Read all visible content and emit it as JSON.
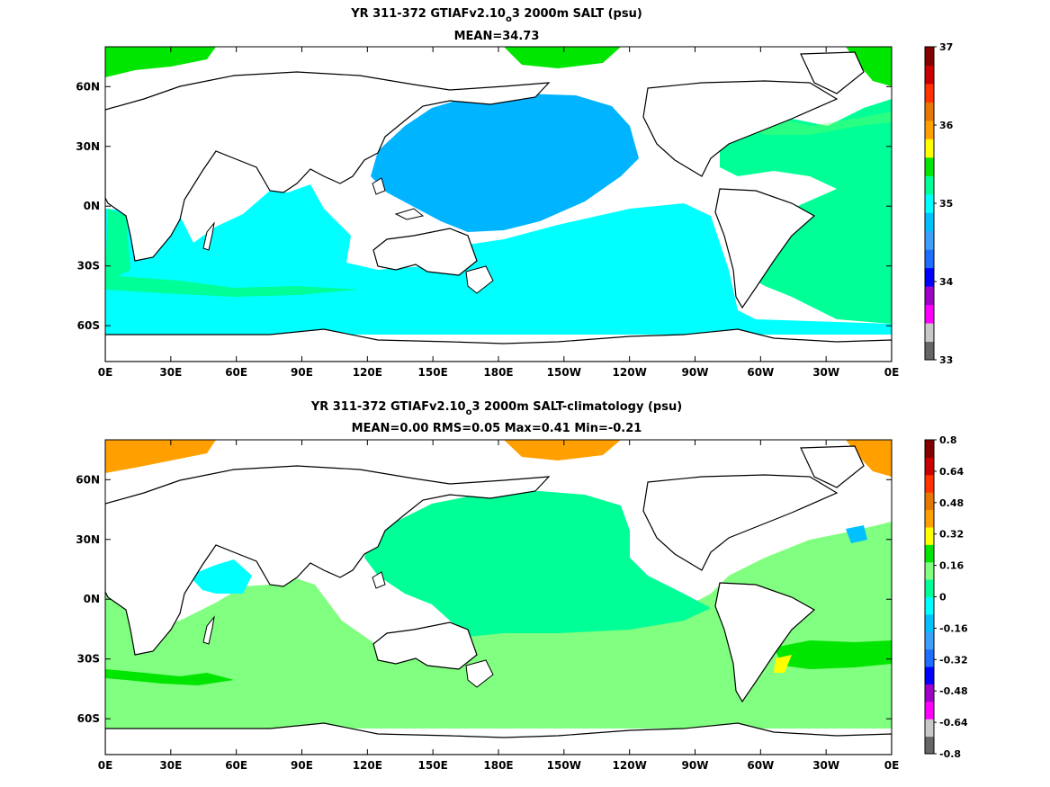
{
  "chart_data": [
    {
      "type": "heatmap",
      "title_prefix": "YR 311-372 GTIAFv2.10",
      "title_sub": "o",
      "title_suffix": "3 2000m SALT (psu)",
      "subtitle": "MEAN=34.73",
      "x_ticks": [
        "0E",
        "30E",
        "60E",
        "90E",
        "120E",
        "150E",
        "180E",
        "150W",
        "120W",
        "90W",
        "60W",
        "30W",
        "0E"
      ],
      "y_ticks": [
        "60N",
        "30N",
        "0N",
        "30S",
        "60S"
      ],
      "colorbar": {
        "range": [
          33,
          37
        ],
        "tick_labels": [
          "37",
          "36",
          "35",
          "34",
          "33"
        ],
        "colors": [
          "#666666",
          "#c8c8c8",
          "#ff00ff",
          "#a000c8",
          "#0000ff",
          "#1e6eff",
          "#3ca0ff",
          "#00c0ff",
          "#00ffff",
          "#00ff96",
          "#00e600",
          "#ffff00",
          "#ffa000",
          "#e67800",
          "#ff3200",
          "#c80000",
          "#820000"
        ]
      },
      "regions": [
        {
          "name": "North Pacific",
          "value_range": "34.5-34.75",
          "color": "#00b4ff"
        },
        {
          "name": "South Pacific / Indian / Southern Ocean",
          "value_range": "34.75-35.0",
          "color": "#00ffff"
        },
        {
          "name": "Atlantic",
          "value_range": "35.0-35.25",
          "color": "#00ff96"
        },
        {
          "name": "Arctic",
          "value_range": "35.25-35.5",
          "color": "#00e600"
        }
      ]
    },
    {
      "type": "heatmap",
      "title_prefix": "YR 311-372 GTIAFv2.10",
      "title_sub": "o",
      "title_suffix": "3 2000m SALT-climatology (psu)",
      "subtitle": "MEAN=0.00   RMS=0.05   Max=0.41   Min=-0.21",
      "x_ticks": [
        "0E",
        "30E",
        "60E",
        "90E",
        "120E",
        "150E",
        "180E",
        "150W",
        "120W",
        "90W",
        "60W",
        "30W",
        "0E"
      ],
      "y_ticks": [
        "60N",
        "30N",
        "0N",
        "30S",
        "60S"
      ],
      "colorbar": {
        "range": [
          -0.8,
          0.8
        ],
        "tick_labels": [
          "0.8",
          "0.64",
          "0.48",
          "0.32",
          "0.16",
          "0",
          "-0.16",
          "-0.32",
          "-0.48",
          "-0.64",
          "-0.8"
        ],
        "colors": [
          "#666666",
          "#c8c8c8",
          "#ff00ff",
          "#a000c8",
          "#0000ff",
          "#1e6eff",
          "#3ca0ff",
          "#00c0ff",
          "#00ffff",
          "#00ff96",
          "#80ff80",
          "#00e600",
          "#ffff00",
          "#ffa000",
          "#e67800",
          "#ff3200",
          "#c80000",
          "#820000"
        ]
      },
      "regions": [
        {
          "name": "North Pacific",
          "value_range": "-0.08-0",
          "color": "#00ff96"
        },
        {
          "name": "South Pacific / Southern Ocean",
          "value_range": "0-0.08",
          "color": "#80ff80"
        },
        {
          "name": "Arabian Sea",
          "value_range": "-0.16--0.08",
          "color": "#00ffff"
        },
        {
          "name": "Arctic",
          "value_range": "0.24-0.32",
          "color": "#ffa000"
        },
        {
          "name": "South Atlantic band",
          "value_range": "0.08-0.16",
          "color": "#00e600"
        }
      ]
    }
  ]
}
